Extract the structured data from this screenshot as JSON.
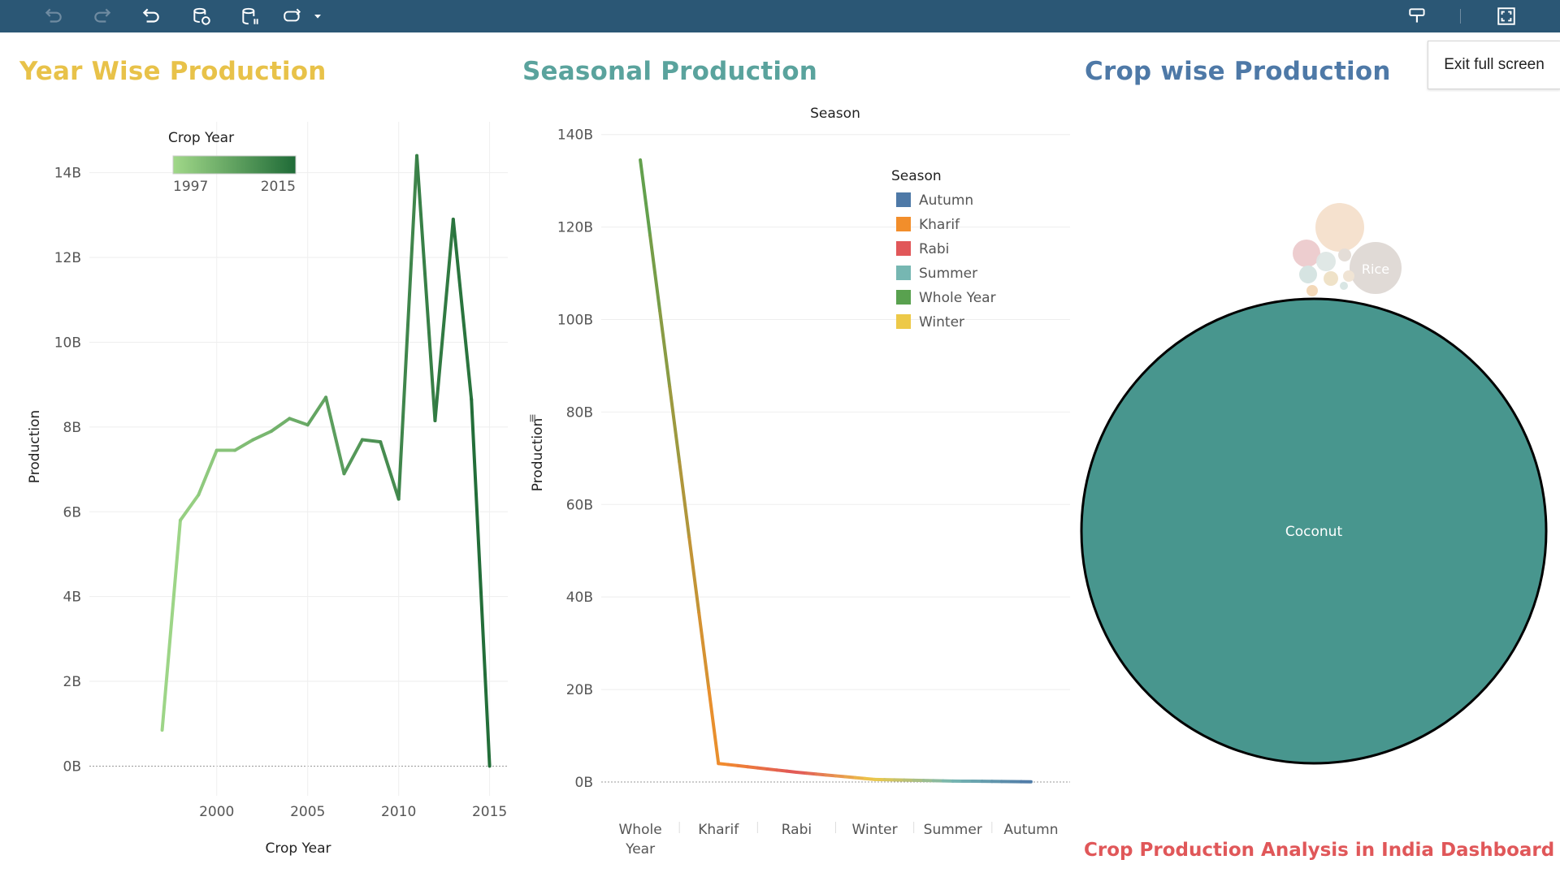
{
  "toolbar": {
    "icons": [
      "undo-icon",
      "redo-icon",
      "revert-icon",
      "refresh-data-icon",
      "pause-updates-icon",
      "replay-animation-icon",
      "dropdown-arrow-icon",
      "highlight-icon",
      "fullscreen-icon"
    ],
    "tooltip": "Exit full screen"
  },
  "colors": {
    "toolbar_bg": "#2b5775",
    "title_year": "#e8c249",
    "title_season": "#5aa39d",
    "title_crop": "#4e79a7",
    "footer": "#e05759",
    "coconut": "#48968e"
  },
  "panels": {
    "year_title": "Year Wise Production",
    "season_title": "Seasonal Production",
    "crop_title": "Crop wise Production"
  },
  "footer": "Crop Production Analysis in India Dashboard",
  "chart_data": [
    {
      "type": "line",
      "title": "Year Wise Production",
      "xlabel": "Crop Year",
      "ylabel": "Production",
      "x": [
        1997,
        1998,
        1999,
        2000,
        2001,
        2002,
        2003,
        2004,
        2005,
        2006,
        2007,
        2008,
        2009,
        2010,
        2011,
        2012,
        2013,
        2014,
        2015
      ],
      "y": [
        0.85,
        5.8,
        6.4,
        7.45,
        7.45,
        7.7,
        7.9,
        8.2,
        8.05,
        8.7,
        6.9,
        7.7,
        7.65,
        6.3,
        14.4,
        8.15,
        12.9,
        8.65,
        0
      ],
      "y_unit": "B",
      "xticks": [
        "2000",
        "2005",
        "2010",
        "2015"
      ],
      "yticks": [
        "0B",
        "2B",
        "4B",
        "6B",
        "8B",
        "10B",
        "12B",
        "14B"
      ],
      "xlim": [
        1993,
        2016
      ],
      "ylim": [
        -0.7,
        15.2
      ],
      "legend": {
        "title": "Crop Year",
        "min_label": "1997",
        "max_label": "2015",
        "color_min": "#a1d889",
        "color_max": "#1f6b37"
      }
    },
    {
      "type": "line",
      "title": "Seasonal Production",
      "header": "Season",
      "xlabel": "",
      "ylabel": "Production",
      "categories": [
        "Whole Year",
        "Kharif",
        "Rabi",
        "Winter",
        "Summer",
        "Autumn"
      ],
      "values": [
        134.5,
        4.0,
        2.1,
        0.55,
        0.2,
        0.05
      ],
      "y_unit": "B",
      "yticks": [
        "0B",
        "20B",
        "40B",
        "60B",
        "80B",
        "100B",
        "120B",
        "140B"
      ],
      "ylim": [
        -6.5,
        141
      ],
      "legend": {
        "title": "Season",
        "items": [
          {
            "label": "Autumn",
            "color": "#4e79a7"
          },
          {
            "label": "Kharif",
            "color": "#f28e2b"
          },
          {
            "label": "Rabi",
            "color": "#e15759"
          },
          {
            "label": "Summer",
            "color": "#76b7b2"
          },
          {
            "label": "Whole Year",
            "color": "#59a14f"
          },
          {
            "label": "Winter",
            "color": "#edc948"
          }
        ]
      }
    },
    {
      "type": "bubble",
      "title": "Crop wise Production",
      "items": [
        {
          "label": "Coconut",
          "color": "#48968e",
          "share": "largest"
        },
        {
          "label": "Rice",
          "color": "#d9d2cd"
        }
      ]
    }
  ]
}
